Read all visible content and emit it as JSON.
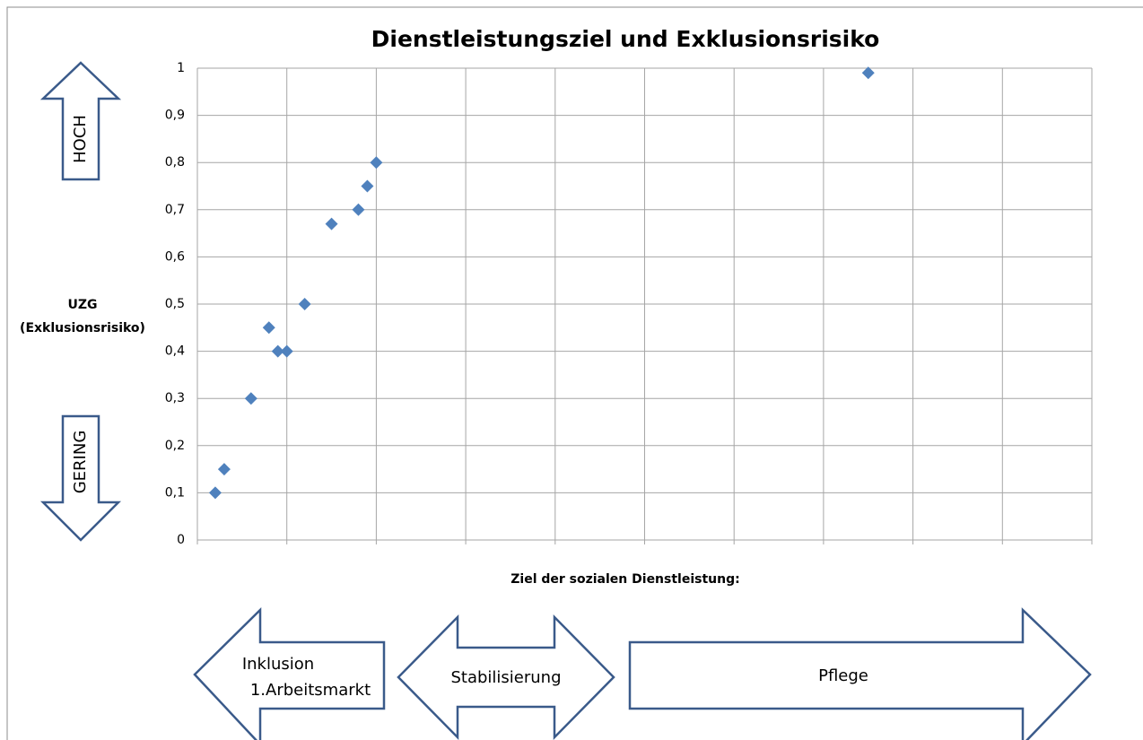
{
  "chart_data": {
    "type": "scatter",
    "title": "Dienstleistungsziel und Exklusionsrisiko",
    "x_label": "Ziel der sozialen Dienstleistung:",
    "y_label": [
      "UZG",
      "(Exklusionsrisiko)"
    ],
    "series": [
      {
        "color": "#4f81bd",
        "x": [
          0.2,
          0.3,
          0.6,
          0.8,
          0.9,
          1.0,
          1.2,
          1.5,
          1.8,
          1.9,
          2.0,
          7.5
        ],
        "values": [
          0.1,
          0.15,
          0.3,
          0.45,
          0.4,
          0.4,
          0.5,
          0.67,
          0.7,
          0.75,
          0.8,
          0.99
        ]
      }
    ],
    "xlim": [
      0,
      10
    ],
    "xticks": [
      0,
      1,
      2,
      3,
      4,
      5,
      6,
      7,
      8,
      9,
      10
    ],
    "x_tick_labels": false,
    "ylim": [
      0,
      1
    ],
    "yticks": [
      0,
      {
        "value": 0.1,
        "label": "0,1"
      },
      {
        "value": 0.2,
        "label": "0,2"
      },
      {
        "value": 0.3,
        "label": "0,3"
      },
      {
        "value": 0.4,
        "label": "0,4"
      },
      {
        "value": 0.5,
        "label": "0,5"
      },
      {
        "value": 0.6,
        "label": "0,6"
      },
      {
        "value": 0.7,
        "label": "0,7"
      },
      {
        "value": 0.8,
        "label": "0,8"
      },
      {
        "value": 0.9,
        "label": "0,9"
      },
      1
    ],
    "grid": true,
    "annotations": {
      "high": "HOCH",
      "low": "GERING",
      "goals": [
        [
          "Inklusion",
          "1.Arbeitsmarkt"
        ],
        [
          "Stabilisierung"
        ],
        [
          "Pflege"
        ]
      ]
    }
  }
}
